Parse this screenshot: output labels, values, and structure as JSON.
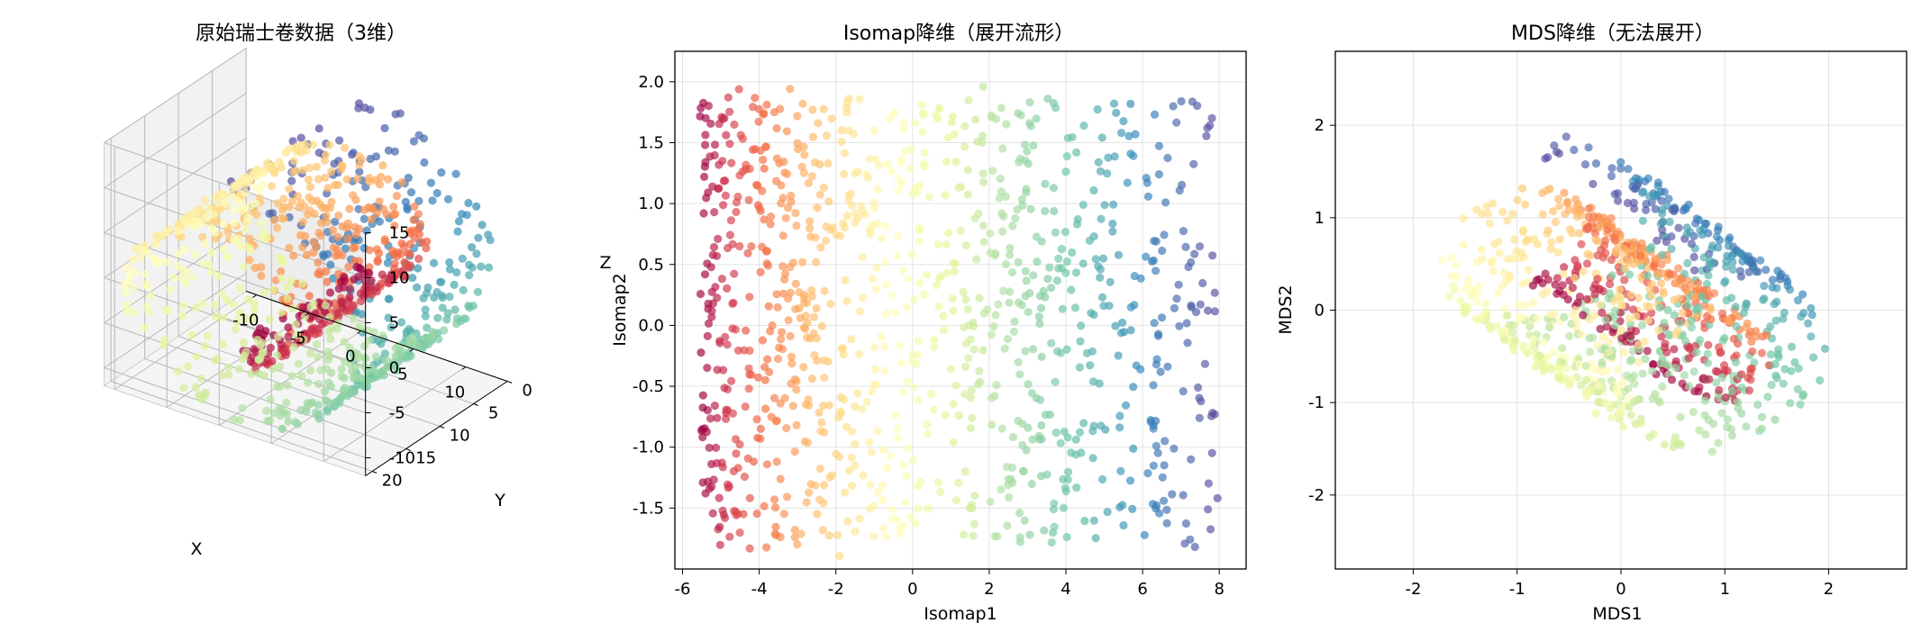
{
  "figure": {
    "colors": {
      "spectral": [
        "#9e0142",
        "#d53e4f",
        "#f46d43",
        "#fdae61",
        "#fee08b",
        "#ffffbf",
        "#e6f598",
        "#abdda4",
        "#66c2a5",
        "#3288bd",
        "#5e4fa2"
      ]
    }
  },
  "chart_data": [
    {
      "type": "scatter",
      "subtype": "3d",
      "title": "原始瑞士卷数据（3维）",
      "xlabel": "X",
      "ylabel": "Y",
      "zlabel": "Z",
      "xlim": [
        -11,
        14
      ],
      "ylim": [
        0,
        21
      ],
      "zlim": [
        -12,
        15
      ],
      "xticks": [
        "-10",
        "-5",
        "0",
        "5",
        "10"
      ],
      "yticks": [
        "0",
        "5",
        "10",
        "15",
        "20"
      ],
      "zticks": [
        "-10",
        "-5",
        "0",
        "5",
        "10",
        "15"
      ],
      "n_points": 1000,
      "color_by": "t",
      "colormap": "Spectral",
      "view": {
        "elev": 30,
        "azim": -60
      }
    },
    {
      "type": "scatter",
      "title": "Isomap降维（展开流形）",
      "xlabel": "Isomap1",
      "ylabel": "Isomap2",
      "xlim": [
        -6.2,
        8.7
      ],
      "ylim": [
        -2.0,
        2.25
      ],
      "xticks": [
        "-6",
        "-4",
        "-2",
        "0",
        "2",
        "4",
        "6",
        "8"
      ],
      "yticks": [
        "-1.5",
        "-1.0",
        "-0.5",
        "0.0",
        "0.5",
        "1.0",
        "1.5",
        "2.0"
      ],
      "grid": true,
      "n_points": 1000,
      "colormap": "Spectral"
    },
    {
      "type": "scatter",
      "title": "MDS降维（无法展开）",
      "xlabel": "MDS1",
      "ylabel": "MDS2",
      "xlim": [
        -2.75,
        2.75
      ],
      "ylim": [
        -2.8,
        2.8
      ],
      "xticks": [
        "-2",
        "-1",
        "0",
        "1",
        "2"
      ],
      "yticks": [
        "-2",
        "-1",
        "0",
        "1",
        "2"
      ],
      "grid": true,
      "n_points": 1000,
      "colormap": "Spectral"
    }
  ]
}
